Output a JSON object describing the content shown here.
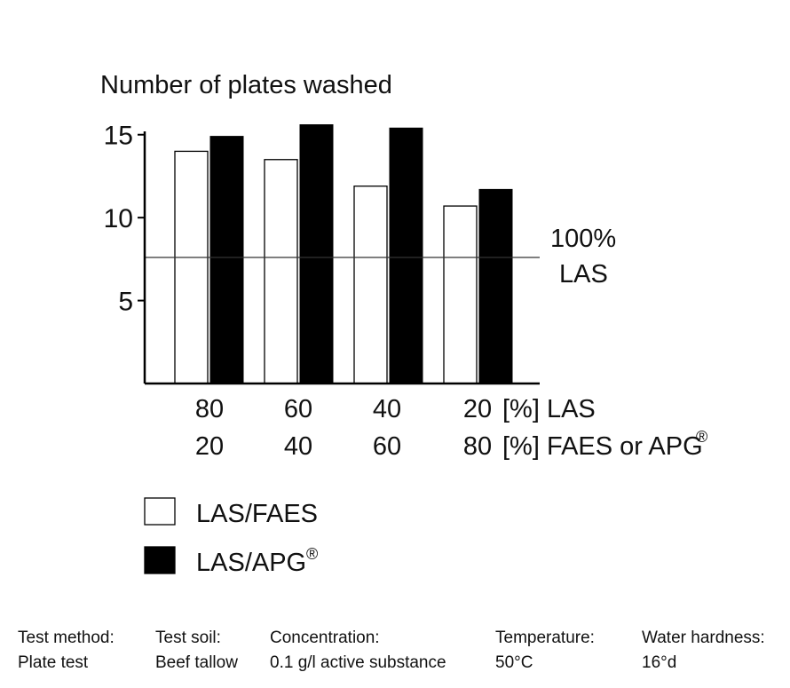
{
  "chart_data": {
    "type": "bar",
    "ylabel": "Number of plates washed",
    "ylim": [
      0,
      15.2
    ],
    "yticks": [
      "5",
      "10",
      "15"
    ],
    "categories": [
      {
        "las": "80",
        "other": "20"
      },
      {
        "las": "60",
        "other": "40"
      },
      {
        "las": "40",
        "other": "60"
      },
      {
        "las": "20",
        "other": "80"
      }
    ],
    "category_suffix_las": "[%] LAS",
    "category_suffix_other": "[%] FAES or APG",
    "category_suffix_other_sup": "®",
    "series": [
      {
        "name": "LAS/FAES",
        "name_sup": "",
        "values": [
          14.0,
          13.5,
          11.9,
          10.7
        ],
        "fill": "#ffffff"
      },
      {
        "name": "LAS/APG",
        "name_sup": "®",
        "values": [
          14.9,
          15.6,
          15.4,
          11.7
        ],
        "fill": "#000000"
      }
    ],
    "reference_line": {
      "value": 7.6,
      "label_line1": "100%",
      "label_line2": "LAS"
    },
    "grid": false,
    "legend_position": "bottom-left"
  },
  "footer": {
    "columns": [
      {
        "heading": "Test method:",
        "value": "Plate test"
      },
      {
        "heading": "Test soil:",
        "value": "Beef tallow"
      },
      {
        "heading": "Concentration:",
        "value": "0.1 g/l active substance"
      },
      {
        "heading": "Temperature:",
        "value": "50°C"
      },
      {
        "heading": "Water hardness:",
        "value": "16°d"
      }
    ]
  }
}
